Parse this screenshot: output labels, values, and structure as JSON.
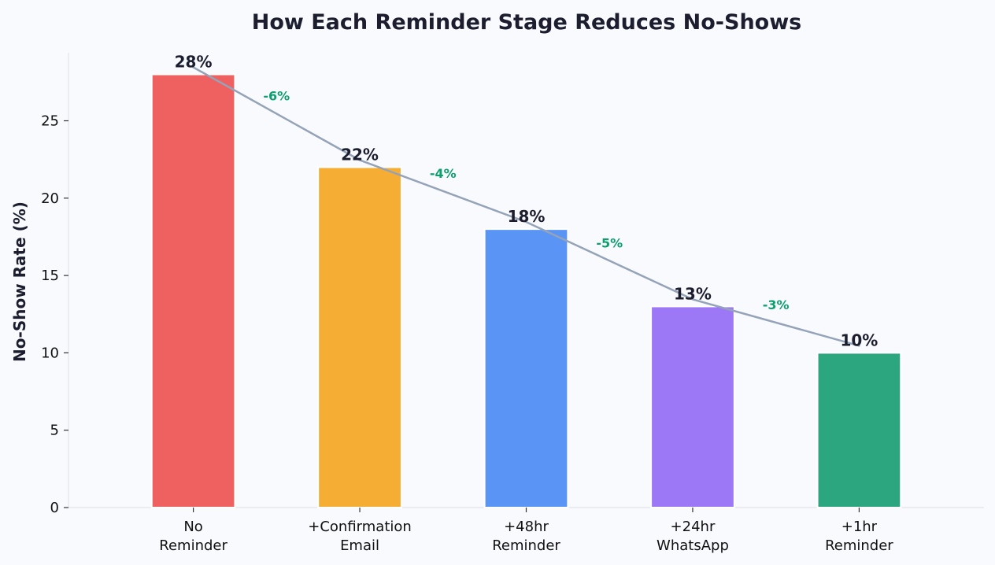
{
  "chart_data": {
    "type": "bar",
    "title": "How Each Reminder Stage Reduces No-Shows",
    "xlabel": "",
    "ylabel": "No-Show Rate (%)",
    "categories": [
      [
        "No",
        "Reminder"
      ],
      [
        "+Confirmation",
        "Email"
      ],
      [
        "+48hr",
        "Reminder"
      ],
      [
        "+24hr",
        "WhatsApp"
      ],
      [
        "+1hr",
        "Reminder"
      ]
    ],
    "values": [
      28,
      22,
      18,
      13,
      10
    ],
    "value_labels": [
      "28%",
      "22%",
      "18%",
      "13%",
      "10%"
    ],
    "deltas": [
      "-6%",
      "-4%",
      "-5%",
      "-3%"
    ],
    "bar_colors": [
      "#ef6161",
      "#f5ad33",
      "#5a95f5",
      "#9c78f7",
      "#2ca67f"
    ],
    "trend_line_color": "#94a3b8",
    "delta_color": "#0e9f6e",
    "ylim": [
      0,
      29.4
    ],
    "yticks": [
      0,
      5,
      10,
      15,
      20,
      25
    ],
    "grid": false,
    "legend": "none"
  }
}
